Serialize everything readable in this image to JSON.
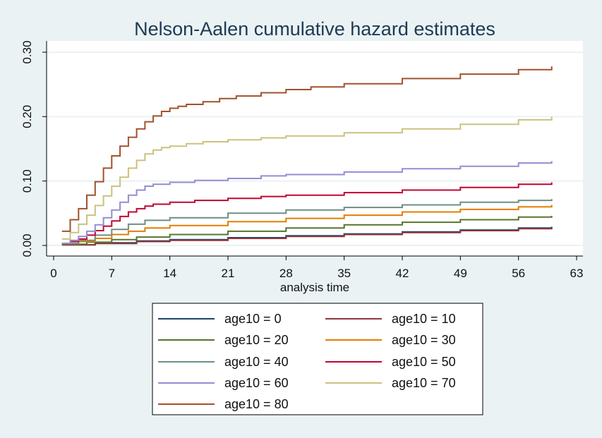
{
  "chart_data": {
    "type": "line",
    "title": "Nelson-Aalen cumulative hazard estimates",
    "xlabel": "analysis time",
    "ylabel": "",
    "xlim": [
      0,
      63
    ],
    "ylim": [
      0,
      0.3
    ],
    "xticks": [
      0,
      7,
      14,
      21,
      28,
      35,
      42,
      49,
      56,
      63
    ],
    "xtick_labels": [
      "0",
      "7",
      "14",
      "21",
      "28",
      "35",
      "42",
      "49",
      "56",
      "63"
    ],
    "yticks": [
      0,
      0.1,
      0.2,
      0.3
    ],
    "ytick_labels": [
      "0.00",
      "0.10",
      "0.20",
      "0.30"
    ],
    "grid": true,
    "legend_position": "bottom",
    "series": [
      {
        "name": "age10 = 0",
        "color": "#1a476f",
        "x": [
          1,
          5,
          10,
          14,
          21,
          28,
          35,
          42,
          49,
          56,
          60
        ],
        "values": [
          0.001,
          0.004,
          0.007,
          0.009,
          0.012,
          0.015,
          0.018,
          0.021,
          0.024,
          0.027,
          0.029
        ]
      },
      {
        "name": "age10 = 10",
        "color": "#90353b",
        "x": [
          1,
          5,
          10,
          14,
          21,
          28,
          35,
          42,
          49,
          56,
          60
        ],
        "values": [
          0.001,
          0.003,
          0.006,
          0.008,
          0.011,
          0.014,
          0.017,
          0.02,
          0.023,
          0.026,
          0.027
        ]
      },
      {
        "name": "age10 = 20",
        "color": "#55752f",
        "x": [
          1,
          4,
          7,
          10,
          14,
          21,
          28,
          35,
          42,
          49,
          56,
          60
        ],
        "values": [
          0.002,
          0.005,
          0.009,
          0.013,
          0.017,
          0.022,
          0.027,
          0.032,
          0.036,
          0.04,
          0.044,
          0.046
        ]
      },
      {
        "name": "age10 = 30",
        "color": "#e37e00",
        "x": [
          1,
          3,
          5,
          7,
          9,
          11,
          14,
          21,
          28,
          35,
          42,
          49,
          56,
          60
        ],
        "values": [
          0.003,
          0.006,
          0.011,
          0.017,
          0.022,
          0.027,
          0.031,
          0.037,
          0.042,
          0.047,
          0.052,
          0.056,
          0.06,
          0.063
        ]
      },
      {
        "name": "age10 = 40",
        "color": "#6e8e84",
        "x": [
          1,
          3,
          5,
          7,
          9,
          11,
          14,
          21,
          28,
          35,
          42,
          49,
          56,
          60
        ],
        "values": [
          0.003,
          0.008,
          0.016,
          0.025,
          0.033,
          0.039,
          0.043,
          0.05,
          0.055,
          0.059,
          0.063,
          0.067,
          0.07,
          0.072
        ]
      },
      {
        "name": "age10 = 50",
        "color": "#c10534",
        "x": [
          1,
          2,
          3,
          4,
          5,
          6,
          7,
          8,
          9,
          10,
          11,
          12,
          14,
          17,
          21,
          25,
          28,
          35,
          42,
          49,
          56,
          60
        ],
        "values": [
          0.003,
          0.006,
          0.01,
          0.016,
          0.023,
          0.03,
          0.038,
          0.045,
          0.052,
          0.057,
          0.061,
          0.064,
          0.067,
          0.07,
          0.073,
          0.076,
          0.078,
          0.082,
          0.086,
          0.09,
          0.095,
          0.098
        ]
      },
      {
        "name": "age10 = 60",
        "color": "#938dd2",
        "x": [
          1,
          2,
          3,
          4,
          5,
          6,
          7,
          8,
          9,
          10,
          11,
          12,
          14,
          17,
          21,
          25,
          28,
          35,
          42,
          49,
          56,
          60
        ],
        "values": [
          0.003,
          0.008,
          0.014,
          0.022,
          0.032,
          0.043,
          0.055,
          0.067,
          0.078,
          0.086,
          0.092,
          0.095,
          0.098,
          0.101,
          0.104,
          0.108,
          0.11,
          0.114,
          0.119,
          0.123,
          0.128,
          0.131
        ]
      },
      {
        "name": "age10 = 70",
        "color": "#cac27e",
        "x": [
          1,
          2,
          3,
          4,
          5,
          6,
          7,
          8,
          9,
          10,
          11,
          12,
          13,
          14,
          16,
          18,
          21,
          25,
          28,
          35,
          42,
          49,
          56,
          60
        ],
        "values": [
          0.01,
          0.02,
          0.033,
          0.047,
          0.062,
          0.077,
          0.092,
          0.106,
          0.12,
          0.132,
          0.142,
          0.148,
          0.152,
          0.154,
          0.158,
          0.161,
          0.164,
          0.167,
          0.17,
          0.175,
          0.181,
          0.188,
          0.195,
          0.2
        ]
      },
      {
        "name": "age10 = 80",
        "color": "#a0522d",
        "x": [
          1,
          2,
          3,
          4,
          5,
          6,
          7,
          8,
          9,
          10,
          11,
          12,
          13,
          14,
          15,
          16,
          18,
          20,
          22,
          25,
          28,
          31,
          35,
          42,
          49,
          56,
          60
        ],
        "values": [
          0.022,
          0.04,
          0.057,
          0.078,
          0.099,
          0.12,
          0.139,
          0.154,
          0.168,
          0.181,
          0.192,
          0.201,
          0.208,
          0.213,
          0.216,
          0.219,
          0.223,
          0.228,
          0.232,
          0.237,
          0.242,
          0.246,
          0.251,
          0.259,
          0.266,
          0.273,
          0.278
        ]
      }
    ]
  }
}
